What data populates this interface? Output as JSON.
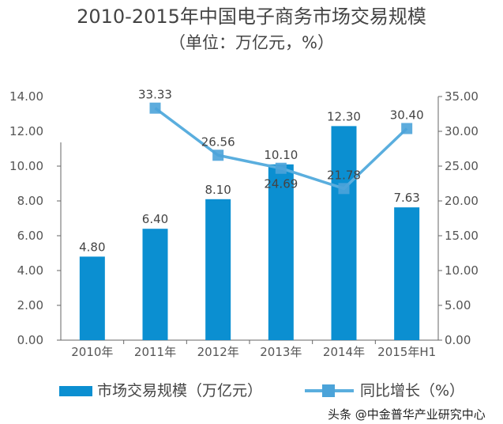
{
  "chart_data": {
    "type": "bar+line",
    "title": "2010-2015年中国电子商务市场交易规模",
    "subtitle": "（单位：万亿元，%）",
    "categories": [
      "2010年",
      "2011年",
      "2012年",
      "2013年",
      "2014年",
      "2015年H1"
    ],
    "series": [
      {
        "name": "市场交易规模（万亿元）",
        "type": "bar",
        "axis": "left",
        "color": "#0b8fd1",
        "values": [
          4.8,
          6.4,
          8.1,
          10.1,
          12.3,
          7.63
        ],
        "labels": [
          "4.80",
          "6.40",
          "8.10",
          "10.10",
          "12.30",
          "7.63"
        ]
      },
      {
        "name": "同比增长（%）",
        "type": "line",
        "axis": "right",
        "color": "#5aaede",
        "values": [
          null,
          33.33,
          26.56,
          24.69,
          21.78,
          30.4
        ],
        "labels": [
          "",
          "33.33",
          "26.56",
          "24.69",
          "21.78",
          "30.40"
        ]
      }
    ],
    "left_axis": {
      "range": [
        0,
        14
      ],
      "ticks": [
        "0.00",
        "2.00",
        "4.00",
        "6.00",
        "8.00",
        "10.00",
        "12.00",
        "14.00"
      ]
    },
    "right_axis": {
      "range": [
        0,
        35
      ],
      "ticks": [
        "0.00",
        "5.00",
        "10.00",
        "15.00",
        "20.00",
        "25.00",
        "30.00",
        "35.00"
      ]
    },
    "grid": false,
    "legend": "bottom"
  },
  "watermark": "头条 @中金普华产业研究中心"
}
